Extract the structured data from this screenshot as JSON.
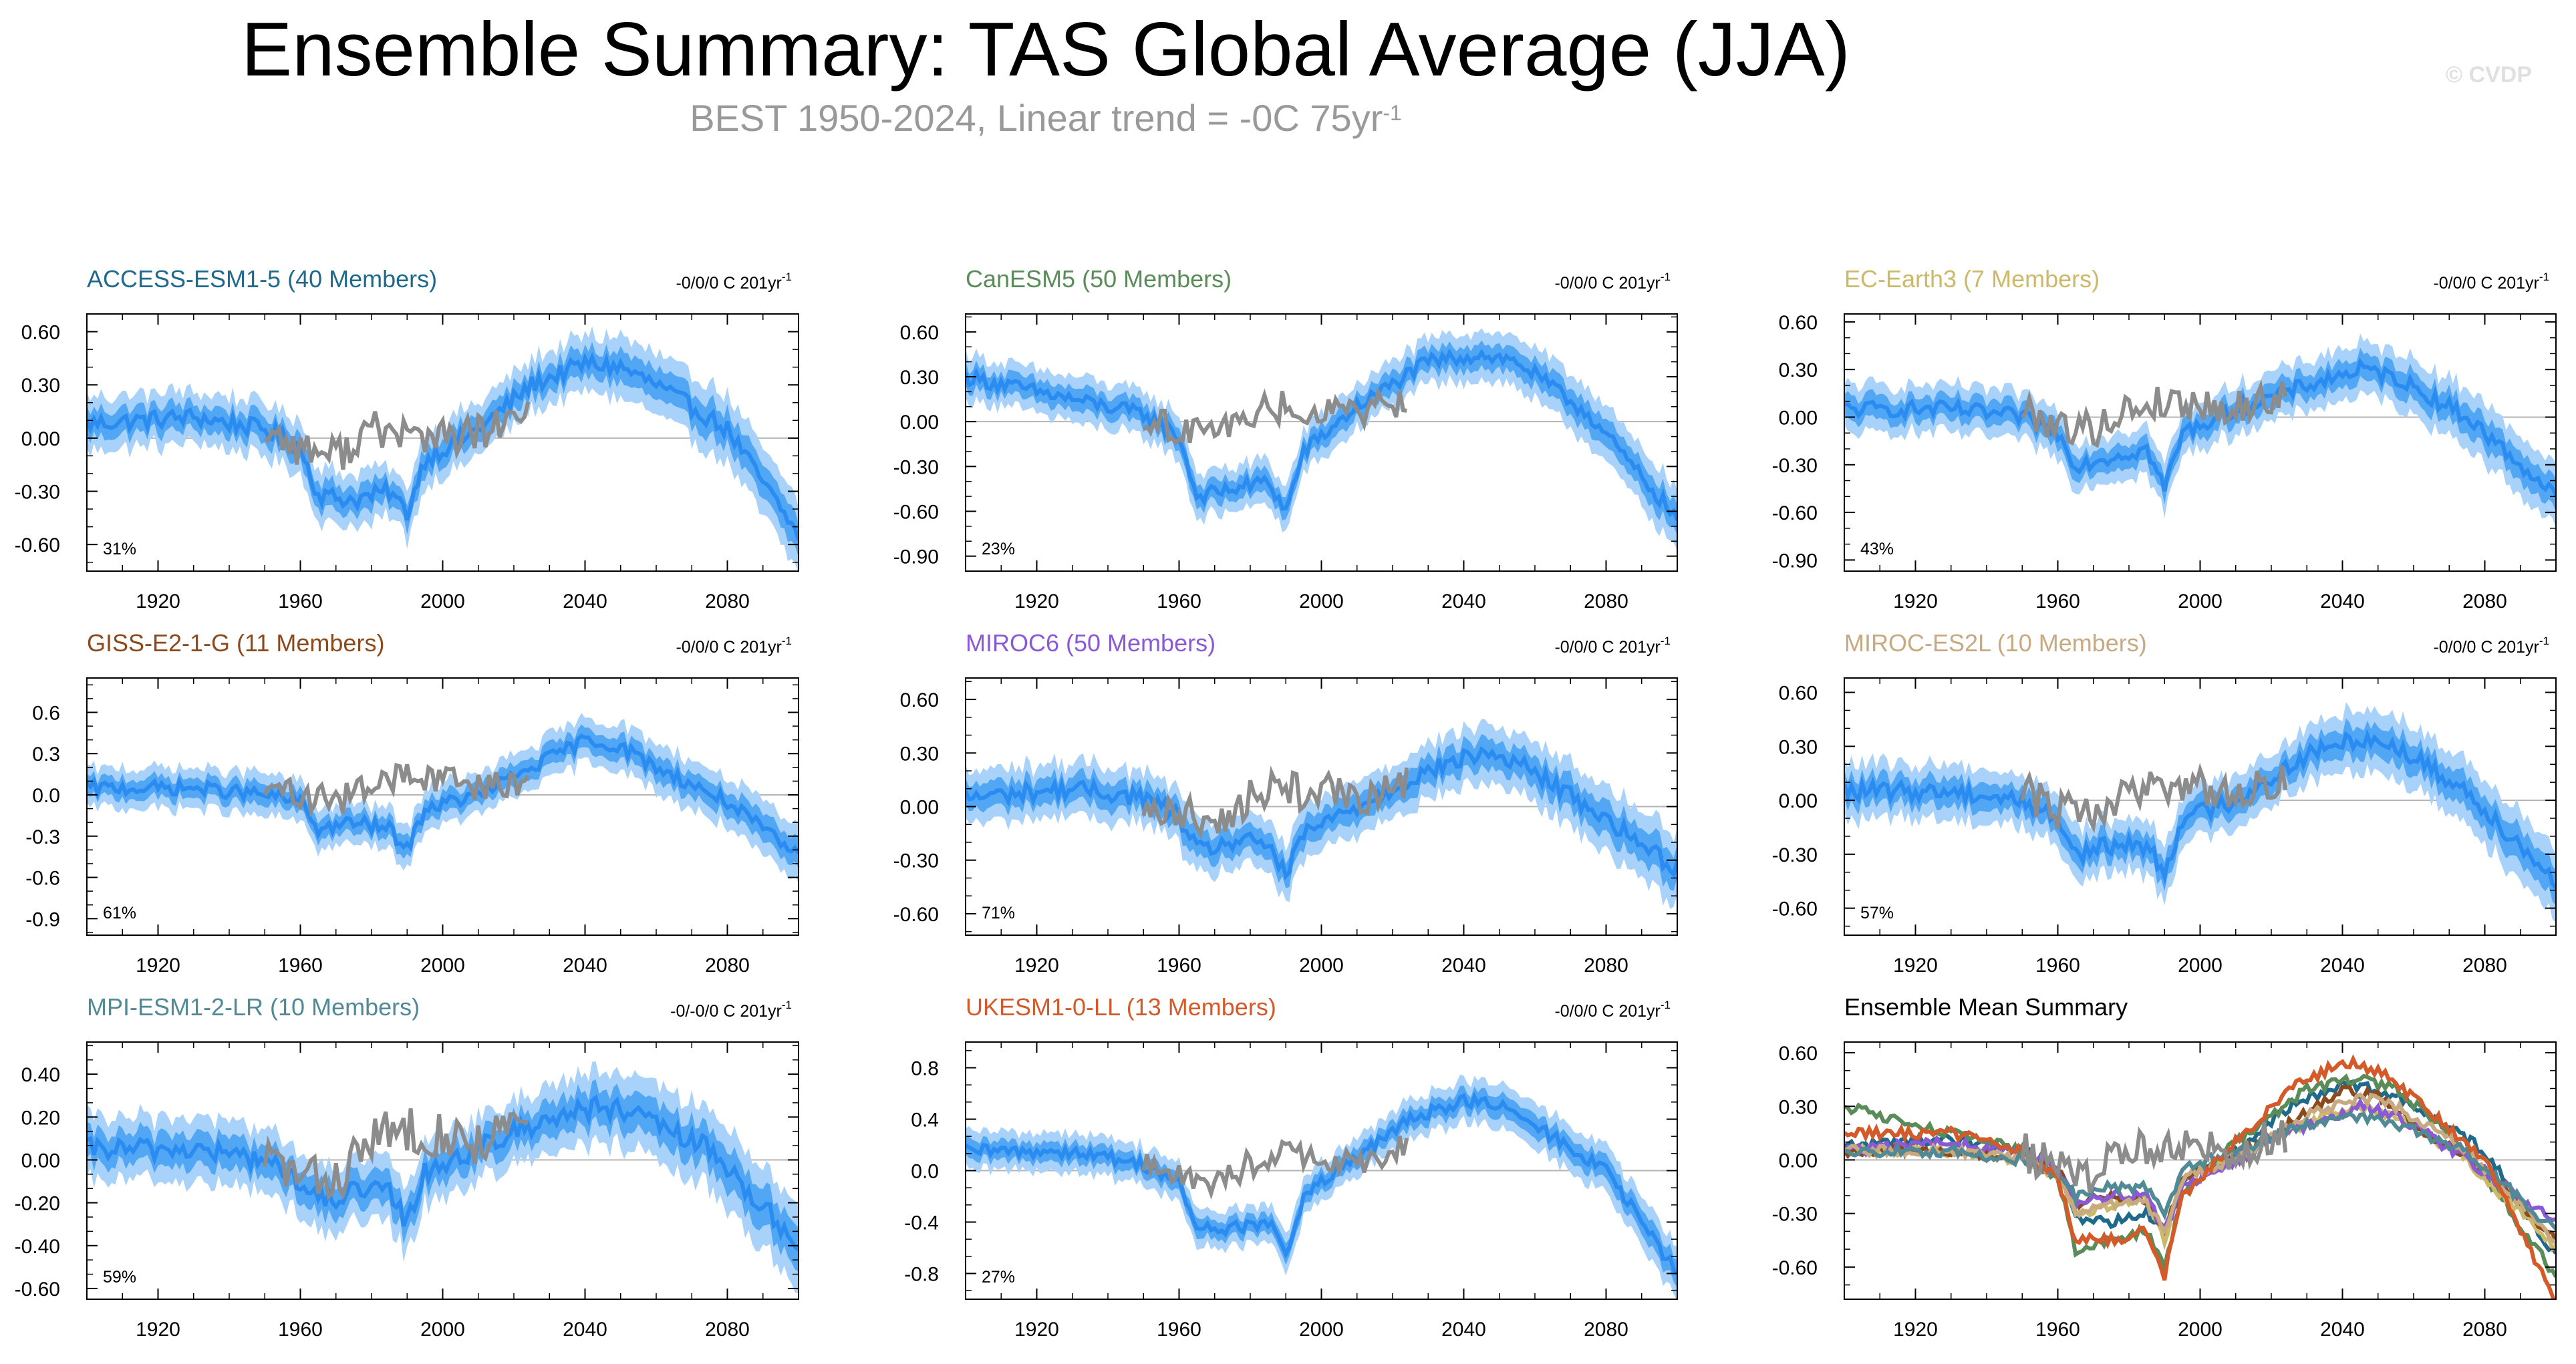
{
  "title": "Ensemble Summary: TAS Global Average (JJA)",
  "subtitle": {
    "text": "BEST 1950-2024, Linear trend = -0C 75yr",
    "sup": "-1"
  },
  "credit": "© CVDP",
  "colors": {
    "mean": "#2a8cf0",
    "inner": "#52a7f5",
    "outer": "#a9d2fb",
    "obs": "#8c8c8c",
    "axis": "#000000",
    "zero": "#b4b4b4"
  },
  "xticks": [
    "1920",
    "1960",
    "2000",
    "2040",
    "2080"
  ],
  "xrange": [
    1900,
    2100
  ],
  "panels": [
    {
      "name": "ACCESS-ESM1-5 (40 Members)",
      "color": "#1f6a8c",
      "trend": "-0/0/0 C 201yr",
      "sup": "-1",
      "pct": "31%",
      "ylim": [
        -0.75,
        0.7
      ],
      "yticks": [
        "0.60",
        "0.30",
        "0.00",
        "-0.30",
        "-0.60"
      ],
      "chart_data": {
        "type": "line",
        "years": [
          1900,
          1930,
          1950,
          1960,
          1965,
          1975,
          1985,
          1990,
          1995,
          2010,
          2025,
          2040,
          2050,
          2060,
          2080,
          2100
        ],
        "values": [
          0.08,
          0.12,
          0.05,
          -0.05,
          -0.32,
          -0.35,
          -0.3,
          -0.42,
          -0.12,
          0.05,
          0.3,
          0.42,
          0.4,
          0.3,
          0.05,
          -0.55
        ],
        "obs_years": [
          1950,
          1960,
          1970,
          1980,
          1990,
          2000,
          2010,
          2024
        ],
        "obs_values": [
          0.05,
          -0.05,
          -0.1,
          0.05,
          0.02,
          0.0,
          0.02,
          0.12
        ]
      }
    },
    {
      "name": "CanESM5 (50 Members)",
      "color": "#5a8c5a",
      "trend": "-0/0/0 C 201yr",
      "sup": "-1",
      "pct": "23%",
      "ylim": [
        -1.0,
        0.72
      ],
      "yticks": [
        "0.60",
        "0.30",
        "0.00",
        "-0.30",
        "-0.60",
        "-0.90"
      ],
      "chart_data": {
        "type": "line",
        "years": [
          1900,
          1930,
          1950,
          1960,
          1965,
          1975,
          1985,
          1990,
          1995,
          2010,
          2030,
          2045,
          2055,
          2075,
          2100
        ],
        "values": [
          0.3,
          0.15,
          0.05,
          -0.1,
          -0.5,
          -0.45,
          -0.4,
          -0.6,
          -0.2,
          0.1,
          0.4,
          0.45,
          0.4,
          0.05,
          -0.65
        ],
        "obs_years": [
          1950,
          1960,
          1970,
          1980,
          1990,
          2000,
          2010,
          2024
        ],
        "obs_values": [
          0.0,
          -0.05,
          -0.08,
          0.05,
          0.1,
          0.08,
          0.05,
          0.15
        ]
      }
    },
    {
      "name": "EC-Earth3 (7 Members)",
      "color": "#cdb96a",
      "trend": "-0/0/0 C 201yr",
      "sup": "-1",
      "pct": "43%",
      "ylim": [
        -0.97,
        0.65
      ],
      "yticks": [
        "0.60",
        "0.30",
        "0.00",
        "-0.30",
        "-0.60",
        "-0.90"
      ],
      "chart_data": {
        "type": "line",
        "years": [
          1900,
          1930,
          1950,
          1960,
          1965,
          1975,
          1985,
          1990,
          1995,
          2010,
          2030,
          2045,
          2055,
          2075,
          2100
        ],
        "values": [
          0.05,
          0.05,
          0.0,
          -0.1,
          -0.3,
          -0.25,
          -0.2,
          -0.45,
          -0.1,
          0.05,
          0.2,
          0.3,
          0.25,
          0.0,
          -0.5
        ],
        "obs_years": [
          1950,
          1960,
          1970,
          1980,
          1990,
          2000,
          2010,
          2024
        ],
        "obs_values": [
          0.05,
          -0.05,
          -0.08,
          0.05,
          0.1,
          0.08,
          0.05,
          0.15
        ]
      }
    },
    {
      "name": "GISS-E2-1-G (11 Members)",
      "color": "#8c4a1c",
      "trend": "-0/0/0 C 201yr",
      "sup": "-1",
      "pct": "61%",
      "ylim": [
        -1.02,
        0.85
      ],
      "yticks": [
        "0.6",
        "0.3",
        "0.0",
        "-0.3",
        "-0.6",
        "-0.9"
      ],
      "chart_data": {
        "type": "line",
        "years": [
          1900,
          1930,
          1950,
          1960,
          1965,
          1975,
          1985,
          1990,
          1995,
          2010,
          2025,
          2040,
          2050,
          2060,
          2080,
          2100
        ],
        "values": [
          0.05,
          0.05,
          0.0,
          -0.05,
          -0.25,
          -0.2,
          -0.25,
          -0.4,
          -0.1,
          0.0,
          0.2,
          0.4,
          0.35,
          0.2,
          -0.05,
          -0.45
        ],
        "obs_years": [
          1950,
          1960,
          1970,
          1980,
          1990,
          2000,
          2010,
          2024
        ],
        "obs_values": [
          0.05,
          0.0,
          -0.05,
          0.05,
          0.15,
          0.1,
          0.05,
          0.1
        ]
      }
    },
    {
      "name": "MIROC6 (50 Members)",
      "color": "#8a5ad6",
      "trend": "-0/0/0 C 201yr",
      "sup": "-1",
      "pct": "71%",
      "ylim": [
        -0.72,
        0.72
      ],
      "yticks": [
        "0.60",
        "0.30",
        "0.00",
        "-0.30",
        "-0.60"
      ],
      "chart_data": {
        "type": "line",
        "years": [
          1900,
          1930,
          1950,
          1960,
          1965,
          1975,
          1985,
          1990,
          1995,
          2010,
          2030,
          2045,
          2055,
          2075,
          2100
        ],
        "values": [
          0.05,
          0.1,
          0.05,
          -0.05,
          -0.25,
          -0.2,
          -0.2,
          -0.4,
          -0.15,
          0.0,
          0.2,
          0.3,
          0.25,
          0.0,
          -0.35
        ],
        "obs_years": [
          1950,
          1960,
          1970,
          1980,
          1990,
          2000,
          2010,
          2024
        ],
        "obs_values": [
          0.0,
          -0.05,
          -0.08,
          0.05,
          0.1,
          0.08,
          0.05,
          0.12
        ]
      }
    },
    {
      "name": "MIROC-ES2L (10 Members)",
      "color": "#c8aa82",
      "trend": "-0/0/0 C 201yr",
      "sup": "-1",
      "pct": "57%",
      "ylim": [
        -0.75,
        0.68
      ],
      "yticks": [
        "0.60",
        "0.30",
        "0.00",
        "-0.30",
        "-0.60"
      ],
      "chart_data": {
        "type": "line",
        "years": [
          1900,
          1930,
          1950,
          1960,
          1965,
          1975,
          1985,
          1990,
          1995,
          2010,
          2030,
          2045,
          2055,
          2075,
          2100
        ],
        "values": [
          0.05,
          0.05,
          0.0,
          -0.1,
          -0.3,
          -0.25,
          -0.25,
          -0.4,
          -0.1,
          0.0,
          0.25,
          0.35,
          0.3,
          0.05,
          -0.45
        ],
        "obs_years": [
          1950,
          1960,
          1970,
          1980,
          1990,
          2000,
          2010,
          2024
        ],
        "obs_values": [
          0.05,
          -0.05,
          -0.08,
          0.05,
          0.1,
          0.08,
          0.05,
          0.12
        ]
      }
    },
    {
      "name": "MPI-ESM1-2-LR (10 Members)",
      "color": "#4f8a96",
      "trend": "-0/-0/0 C 201yr",
      "sup": "-1",
      "pct": "59%",
      "ylim": [
        -0.65,
        0.55
      ],
      "yticks": [
        "0.40",
        "0.20",
        "0.00",
        "-0.20",
        "-0.40",
        "-0.60"
      ],
      "chart_data": {
        "type": "line",
        "years": [
          1900,
          1930,
          1950,
          1960,
          1965,
          1975,
          1985,
          1990,
          1995,
          2010,
          2030,
          2045,
          2055,
          2075,
          2100
        ],
        "values": [
          0.05,
          0.05,
          0.0,
          -0.1,
          -0.2,
          -0.15,
          -0.15,
          -0.3,
          -0.05,
          0.05,
          0.2,
          0.25,
          0.2,
          0.05,
          -0.4
        ],
        "obs_years": [
          1950,
          1960,
          1970,
          1980,
          1990,
          2000,
          2010,
          2024
        ],
        "obs_values": [
          0.02,
          -0.08,
          -0.1,
          0.1,
          0.15,
          0.12,
          0.08,
          0.18
        ]
      }
    },
    {
      "name": "UKESM1-0-LL (13 Members)",
      "color": "#d45a2a",
      "trend": "-0/0/0 C 201yr",
      "sup": "-1",
      "pct": "27%",
      "ylim": [
        -1.0,
        1.0
      ],
      "yticks": [
        "0.8",
        "0.4",
        "0.0",
        "-0.4",
        "-0.8"
      ],
      "chart_data": {
        "type": "line",
        "years": [
          1900,
          1930,
          1950,
          1960,
          1965,
          1975,
          1985,
          1990,
          1995,
          2010,
          2025,
          2040,
          2050,
          2060,
          2080,
          2100
        ],
        "values": [
          0.15,
          0.15,
          0.05,
          -0.1,
          -0.45,
          -0.45,
          -0.4,
          -0.65,
          -0.2,
          0.1,
          0.4,
          0.55,
          0.5,
          0.35,
          0.0,
          -0.8
        ],
        "obs_years": [
          1950,
          1960,
          1970,
          1980,
          1990,
          2000,
          2010,
          2024
        ],
        "obs_values": [
          0.05,
          -0.05,
          -0.1,
          0.05,
          0.15,
          0.1,
          0.05,
          0.2
        ]
      }
    },
    {
      "name": "Ensemble Mean Summary",
      "color": "#000000",
      "trend": "",
      "sup": "",
      "pct": "",
      "ylim": [
        -0.78,
        0.66
      ],
      "yticks": [
        "0.60",
        "0.30",
        "0.00",
        "-0.30",
        "-0.60"
      ],
      "chart_data": {
        "type": "multi-line",
        "note": "ensemble means of all models overlaid with observations",
        "obs_years": [
          1950,
          1960,
          1970,
          1980,
          1990,
          2000,
          2010,
          2024
        ],
        "obs_values": [
          0.05,
          -0.05,
          -0.08,
          0.05,
          0.1,
          0.08,
          0.05,
          0.15
        ]
      }
    }
  ]
}
